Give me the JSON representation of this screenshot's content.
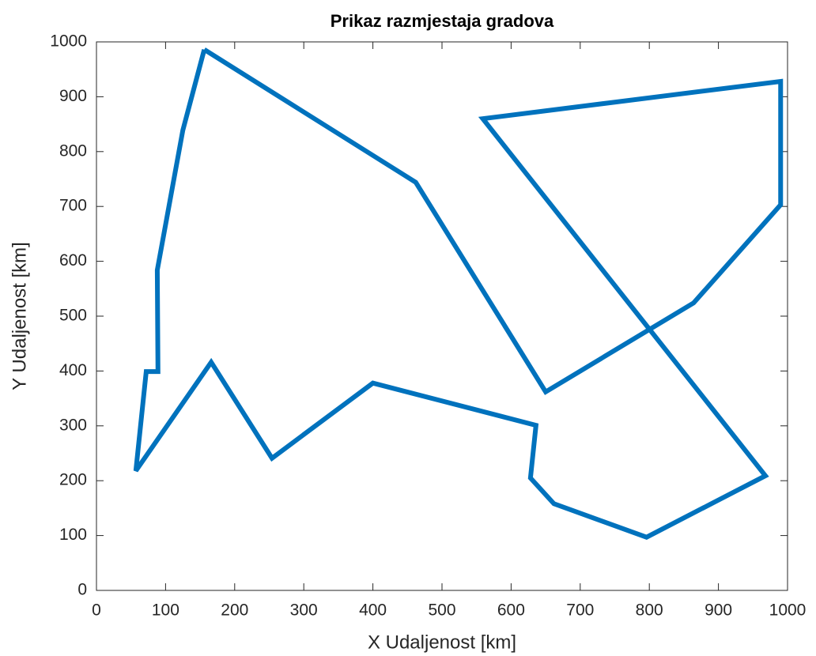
{
  "chart_data": {
    "type": "line",
    "title": "Prikaz razmjestaja gradova",
    "xlabel": "X Udaljenost [km]",
    "ylabel": "Y Udaljenost [km]",
    "x": [
      156,
      125,
      88,
      89,
      72,
      57,
      166,
      254,
      400,
      636,
      628,
      662,
      796,
      968,
      559,
      990,
      990,
      864,
      650,
      462,
      156
    ],
    "values": [
      986,
      839,
      584,
      399,
      399,
      218,
      416,
      241,
      378,
      301,
      205,
      158,
      97,
      209,
      860,
      928,
      703,
      524,
      362,
      744,
      986
    ],
    "color": "#0072bd",
    "xlim": [
      0,
      1000
    ],
    "xticks": [
      0,
      100,
      200,
      300,
      400,
      500,
      600,
      700,
      800,
      900,
      1000
    ],
    "ylim": [
      0,
      1000
    ],
    "yticks": [
      0,
      100,
      200,
      300,
      400,
      500,
      600,
      700,
      800,
      900,
      1000
    ],
    "grid": false
  }
}
